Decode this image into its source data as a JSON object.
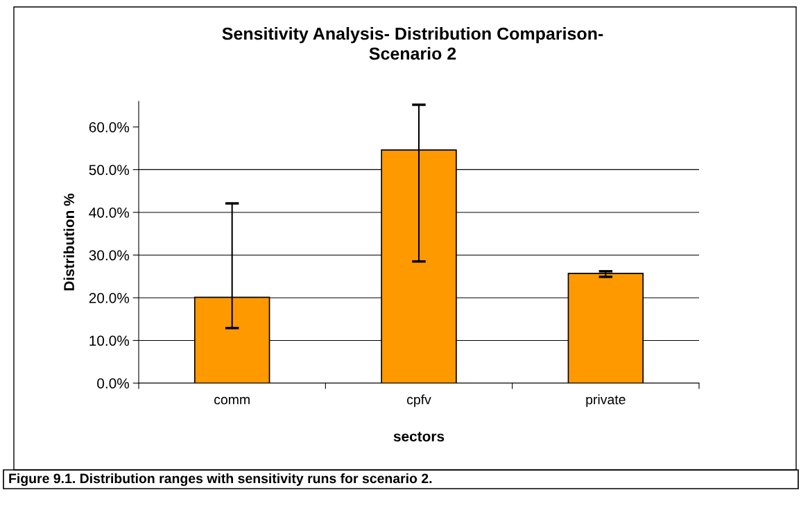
{
  "chart_data": {
    "type": "bar",
    "title": "Sensitivity Analysis- Distribution Comparison-\nScenario 2",
    "xlabel": "sectors",
    "ylabel": "Distribution %",
    "categories": [
      "comm",
      "cpfv",
      "private"
    ],
    "values": [
      20.1,
      54.6,
      25.7
    ],
    "color": "#ff9900",
    "errors": [
      [
        12.9,
        42.1
      ],
      [
        28.5,
        65.2
      ],
      [
        24.9,
        26.2
      ]
    ],
    "ylim": [
      0,
      66
    ],
    "yticks": [
      {
        "value": 0,
        "label": "0.0%"
      },
      {
        "value": 10,
        "label": "10.0%"
      },
      {
        "value": 20,
        "label": "20.0%"
      },
      {
        "value": 30,
        "label": "30.0%"
      },
      {
        "value": 40,
        "label": "40.0%"
      },
      {
        "value": 50,
        "label": "50.0%"
      },
      {
        "value": 60,
        "label": "60.0%"
      }
    ],
    "grid": "y",
    "annotations": [
      "Figure 9.1. Distribution ranges with sensitivity runs for scenario 2."
    ]
  }
}
